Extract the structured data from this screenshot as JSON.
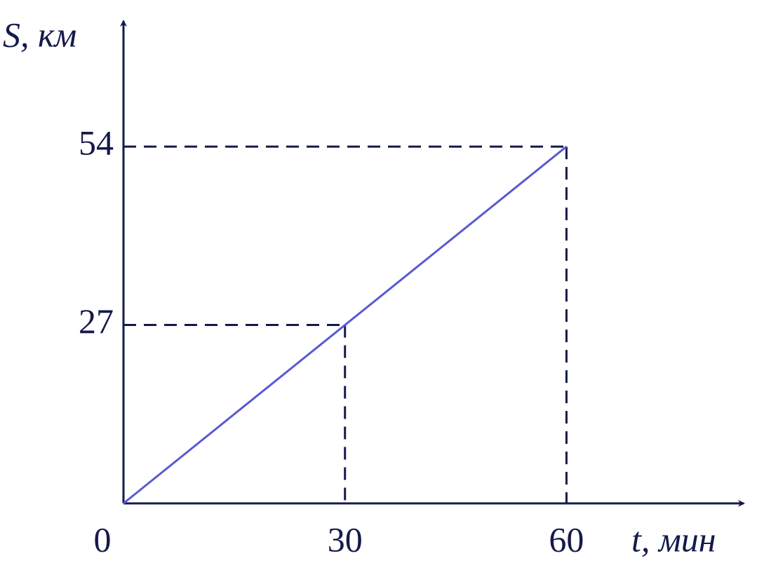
{
  "chart_data": {
    "type": "line",
    "x_label": "t, мин",
    "y_label": "S, км",
    "x": [
      0,
      30,
      60
    ],
    "series": [
      {
        "color": "#5a5ad2",
        "values": [
          0,
          27,
          54
        ]
      }
    ],
    "xlim": [
      0,
      84
    ],
    "ylim": [
      0,
      73
    ],
    "xticks": [
      0,
      30,
      60
    ],
    "yticks": [
      27,
      54
    ],
    "axis_color": "#141a4a",
    "guides": true
  }
}
